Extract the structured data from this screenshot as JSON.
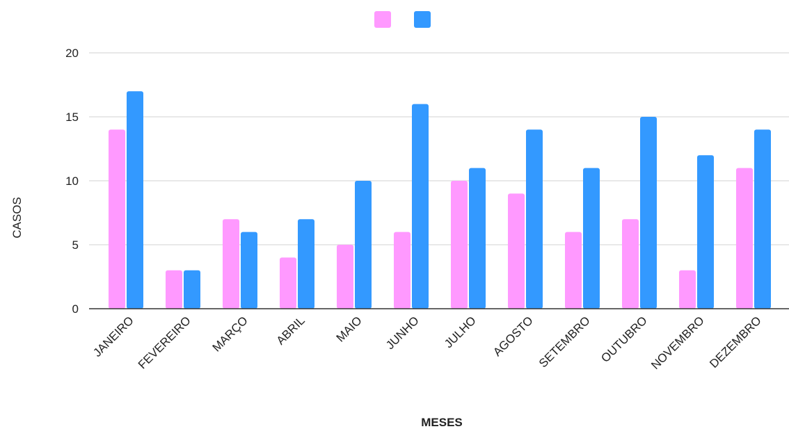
{
  "chart_data": {
    "type": "bar",
    "title": "",
    "xlabel": "MESES",
    "ylabel": "CASOS",
    "categories": [
      "JANEIRO",
      "FEVEREIRO",
      "MARÇO",
      "ABRIL",
      "MAIO",
      "JUNHO",
      "JULHO",
      "AGOSTO",
      "SETEMBRO",
      "OUTUBRO",
      "NOVEMBRO",
      "DEZEMBRO"
    ],
    "series": [
      {
        "values": [
          14,
          3,
          7,
          4,
          5,
          6,
          10,
          9,
          6,
          7,
          3,
          11
        ],
        "color": "#ff99ff"
      },
      {
        "values": [
          17,
          3,
          6,
          7,
          10,
          16,
          11,
          14,
          11,
          15,
          12,
          14
        ],
        "color": "#3399ff"
      }
    ],
    "ylim": [
      0,
      20
    ],
    "yticks": [
      "0",
      "5",
      "10",
      "15",
      "20"
    ],
    "grid": true,
    "legend_position": "top"
  }
}
